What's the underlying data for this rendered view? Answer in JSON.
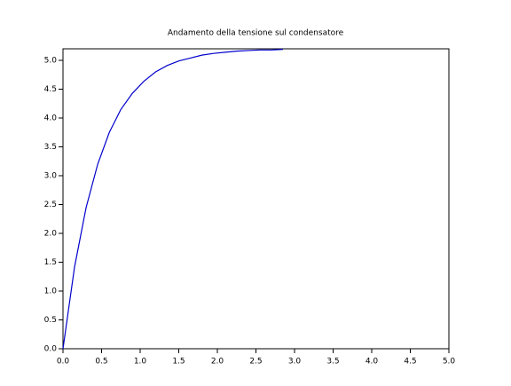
{
  "chart_data": {
    "type": "line",
    "title": "Andamento della tensione sul condensatore",
    "x": [
      0,
      0.15,
      0.3,
      0.45,
      0.6,
      0.75,
      0.9,
      1.05,
      1.2,
      1.35,
      1.5,
      1.65,
      1.8,
      1.95,
      2.1,
      2.25,
      2.4,
      2.55,
      2.7,
      2.85
    ],
    "series": [
      {
        "color": "#0000cc",
        "values": [
          0,
          1.42,
          2.45,
          3.2,
          3.75,
          4.15,
          4.43,
          4.64,
          4.8,
          4.91,
          4.99,
          5.04,
          5.09,
          5.12,
          5.14,
          5.16,
          5.17,
          5.18,
          5.18,
          5.19
        ]
      }
    ],
    "xlim": [
      0,
      5
    ],
    "xticks": [
      {
        "value": 0,
        "label": "0.0"
      },
      0.5,
      {
        "value": 1,
        "label": "1.0"
      },
      1.5,
      {
        "value": 2,
        "label": "2.0"
      },
      2.5,
      {
        "value": 3,
        "label": "3.0"
      },
      3.5,
      {
        "value": 4,
        "label": "4.0"
      },
      4.5,
      {
        "value": 5,
        "label": "5.0"
      }
    ],
    "ylim": [
      0,
      5.2
    ],
    "yticks": [
      {
        "value": 0,
        "label": "0.0"
      },
      0.5,
      {
        "value": 1,
        "label": "1.0"
      },
      1.5,
      {
        "value": 2,
        "label": "2.0"
      },
      2.5,
      {
        "value": 3,
        "label": "3.0"
      },
      3.5,
      {
        "value": 4,
        "label": "4.0"
      },
      4.5,
      {
        "value": 5,
        "label": "5.0"
      }
    ],
    "grid": false
  }
}
